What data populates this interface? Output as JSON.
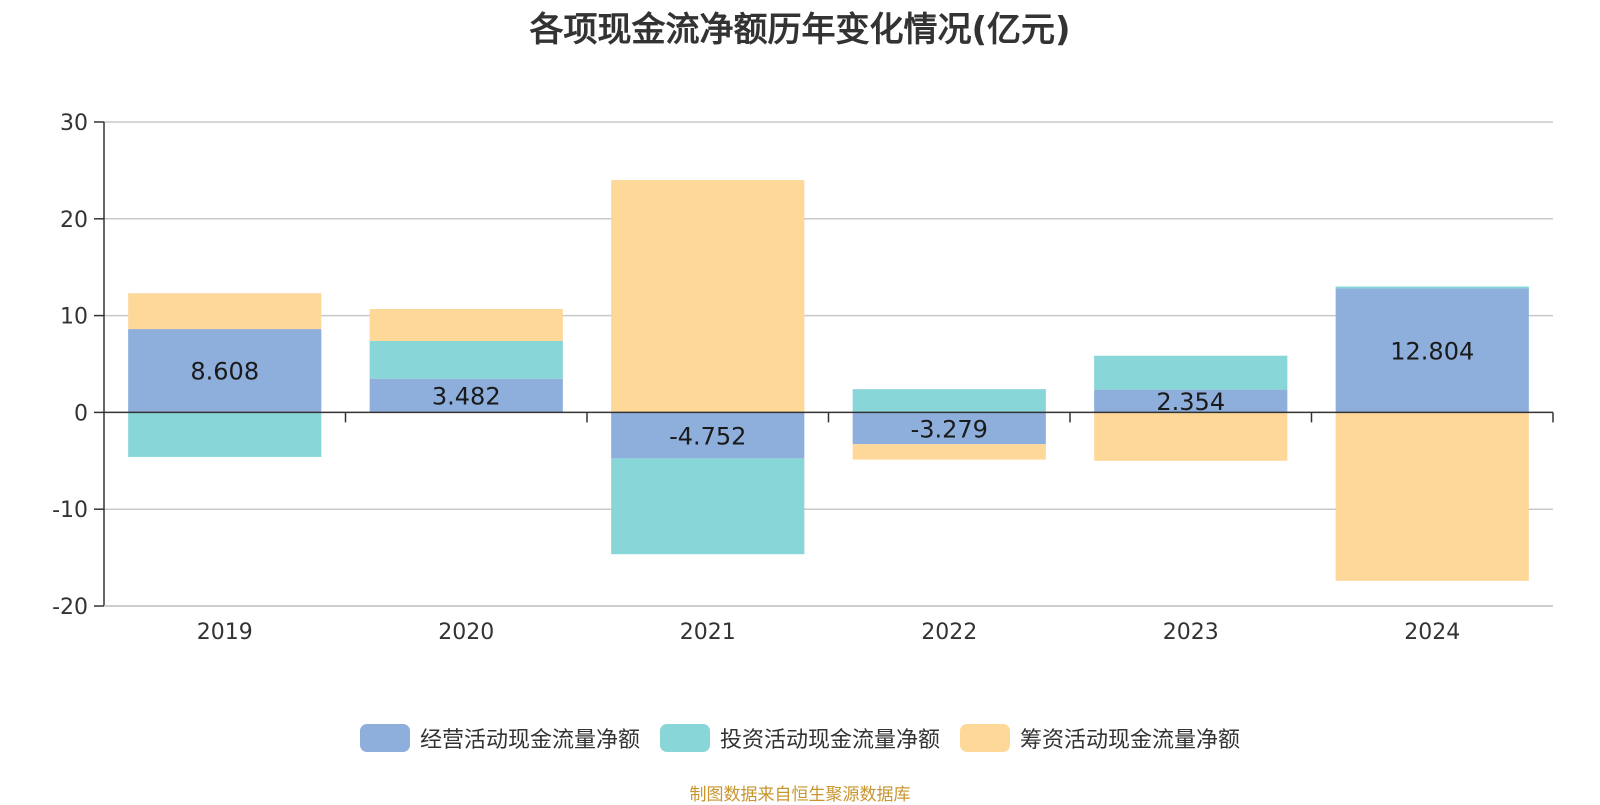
{
  "title": "各项现金流净额历年变化情况(亿元)",
  "source": "制图数据来自恒生聚源数据库",
  "chart_data": {
    "type": "bar",
    "stacked": true,
    "categories": [
      "2019",
      "2020",
      "2021",
      "2022",
      "2023",
      "2024"
    ],
    "ylim": [
      -20,
      30
    ],
    "yticks": [
      30,
      20,
      10,
      0,
      -10,
      -20
    ],
    "grid": true,
    "legend_position": "bottom",
    "series": [
      {
        "name": "经营活动现金流量净额",
        "color": "#8eaedb",
        "values": [
          8.608,
          3.482,
          -4.752,
          -3.279,
          2.354,
          12.804
        ],
        "labels": [
          "8.608",
          "3.482",
          "-4.752",
          "-3.279",
          "2.354",
          "12.804"
        ]
      },
      {
        "name": "投资活动现金流量净额",
        "color": "#88d6d8",
        "values": [
          -4.6,
          3.9,
          -9.9,
          2.4,
          3.5,
          0.2
        ]
      },
      {
        "name": "筹资活动现金流量净额",
        "color": "#fdd899",
        "values": [
          3.7,
          3.3,
          24.0,
          -1.6,
          -5.0,
          -17.4
        ]
      }
    ]
  }
}
